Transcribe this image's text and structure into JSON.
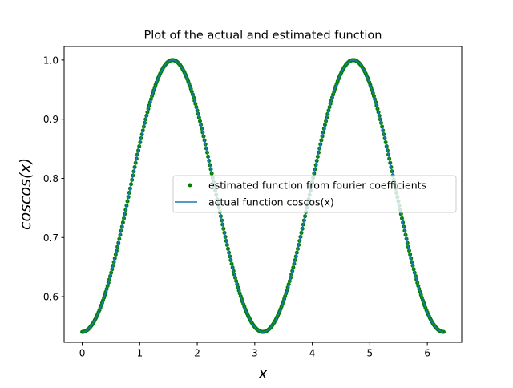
{
  "chart_data": {
    "type": "line",
    "title": "Plot of the actual and estimated function",
    "xlabel": "x",
    "ylabel": "coscos(x)",
    "xlim": [
      -0.3142,
      6.5973
    ],
    "ylim": [
      0.5228,
      1.0229
    ],
    "x_ticks": [
      0,
      1,
      2,
      3,
      4,
      5,
      6
    ],
    "x_tick_labels": [
      "0",
      "1",
      "2",
      "3",
      "4",
      "5",
      "6"
    ],
    "y_ticks": [
      0.6,
      0.7,
      0.8,
      0.9,
      1.0
    ],
    "y_tick_labels": [
      "0.6",
      "0.7",
      "0.8",
      "0.9",
      "1.0"
    ],
    "grid": false,
    "legend_position": "center-right",
    "x_range": [
      0,
      6.2832
    ],
    "series": [
      {
        "name": "estimated function from fourier coefficients",
        "style": "points",
        "color": "#008000",
        "function": "cos(cos(x))",
        "n_points": 400
      },
      {
        "name": "actual function coscos(x)",
        "style": "line",
        "color": "#1f77b4",
        "function": "cos(cos(x))",
        "n_points": 400
      }
    ]
  }
}
